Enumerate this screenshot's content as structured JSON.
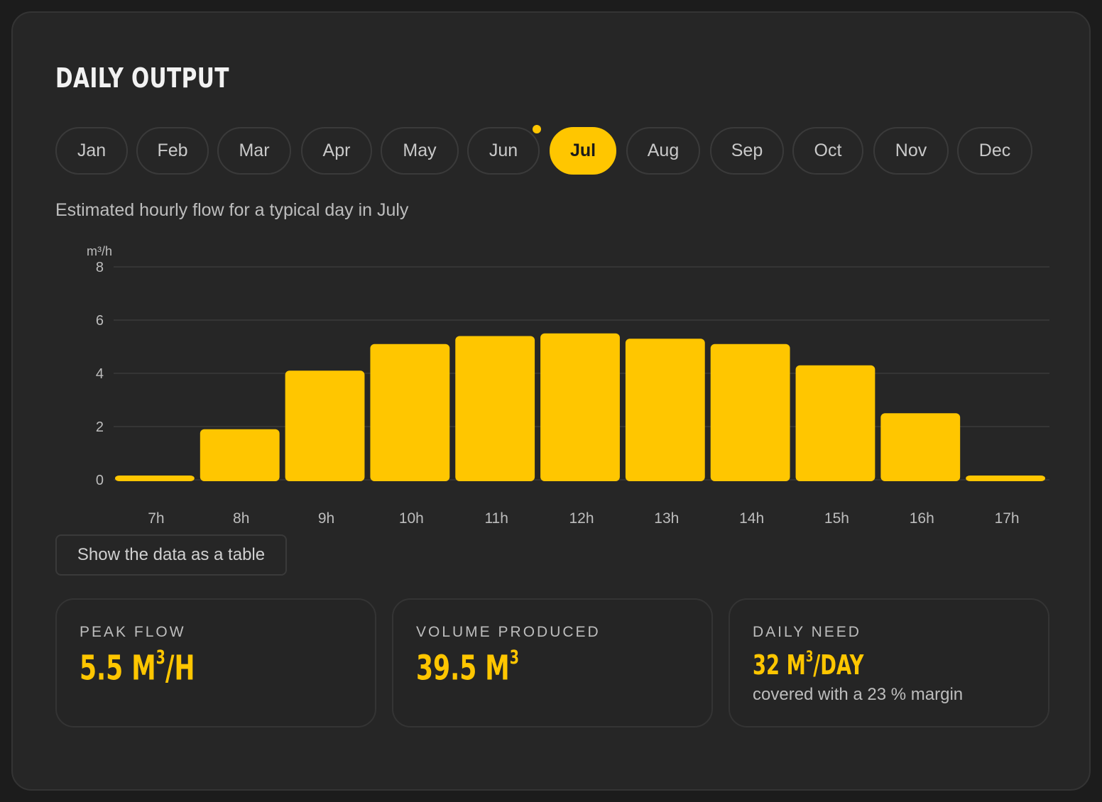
{
  "title": "DAILY OUTPUT",
  "months": [
    "Jan",
    "Feb",
    "Mar",
    "Apr",
    "May",
    "Jun",
    "Jul",
    "Aug",
    "Sep",
    "Oct",
    "Nov",
    "Dec"
  ],
  "selected_month": "Jul",
  "indicator_month": "Jun",
  "subtitle": "Estimated hourly flow for a typical day in July",
  "table_button_label": "Show the data as a table",
  "colors": {
    "accent": "#ffc600",
    "background": "#262626",
    "page": "#1c1c1c",
    "text_muted": "#bdbdbd"
  },
  "stats": {
    "peak": {
      "label": "PEAK FLOW",
      "value": "5.5 M",
      "unit_sup": "3",
      "unit_suffix": "/H"
    },
    "volume": {
      "label": "VOLUME PRODUCED",
      "value": "39.5 M",
      "unit_sup": "3",
      "unit_suffix": ""
    },
    "need": {
      "label": "DAILY NEED",
      "value": "32 M",
      "unit_sup": "3",
      "unit_suffix": "/DAY",
      "note": "covered with a 23 % margin"
    }
  },
  "chart_data": {
    "type": "bar",
    "categories": [
      "7h",
      "8h",
      "9h",
      "10h",
      "11h",
      "12h",
      "13h",
      "14h",
      "15h",
      "16h",
      "17h"
    ],
    "values": [
      0.1,
      1.9,
      4.1,
      5.1,
      5.4,
      5.5,
      5.3,
      5.1,
      4.3,
      2.5,
      0.1
    ],
    "ylabel": "m³/h",
    "ylim": [
      0,
      8
    ],
    "yticks": [
      0,
      2,
      4,
      6,
      8
    ],
    "grid": true,
    "bar_color": "#ffc600"
  }
}
